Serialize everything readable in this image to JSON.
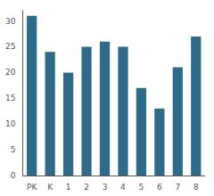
{
  "chart_data": {
    "type": "bar",
    "categories": [
      "PK",
      "K",
      "1",
      "2",
      "3",
      "4",
      "5",
      "6",
      "7",
      "8"
    ],
    "values": [
      31,
      24,
      20,
      25,
      26,
      25,
      17,
      13,
      21,
      27
    ],
    "color": "#2e6b8a",
    "ylim": [
      0,
      32
    ],
    "yticks": [
      0,
      5,
      10,
      15,
      20,
      25,
      30
    ],
    "grid": false
  }
}
